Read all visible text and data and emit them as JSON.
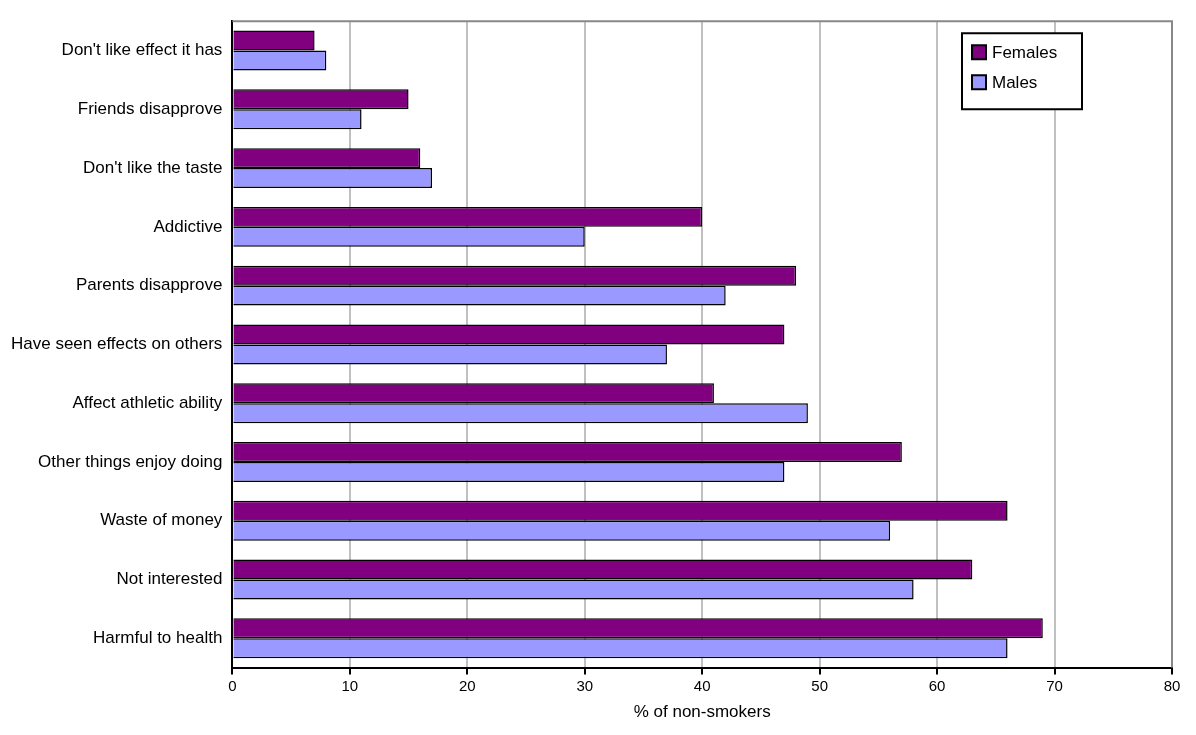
{
  "chart_data": {
    "type": "bar",
    "orientation": "horizontal",
    "xlabel": "% of non-smokers",
    "categories": [
      "Don't like effect it has",
      "Friends disapprove",
      "Don't like the taste",
      "Addictive",
      "Parents disapprove",
      "Have seen effects on others",
      "Affect athletic ability",
      "Other things enjoy doing",
      "Waste of money",
      "Not interested",
      "Harmful to health"
    ],
    "series": [
      {
        "name": "Females",
        "color": "#800080",
        "values": [
          7,
          15,
          16,
          40,
          48,
          47,
          41,
          57,
          66,
          63,
          69
        ]
      },
      {
        "name": "Males",
        "color": "#9999ff",
        "values": [
          8,
          11,
          17,
          30,
          42,
          37,
          49,
          47,
          56,
          58,
          66
        ]
      }
    ],
    "xlim": [
      0,
      80
    ],
    "xticks": [
      0,
      10,
      20,
      30,
      40,
      50,
      60,
      70,
      80
    ],
    "grid": "x",
    "legend": "top right"
  }
}
